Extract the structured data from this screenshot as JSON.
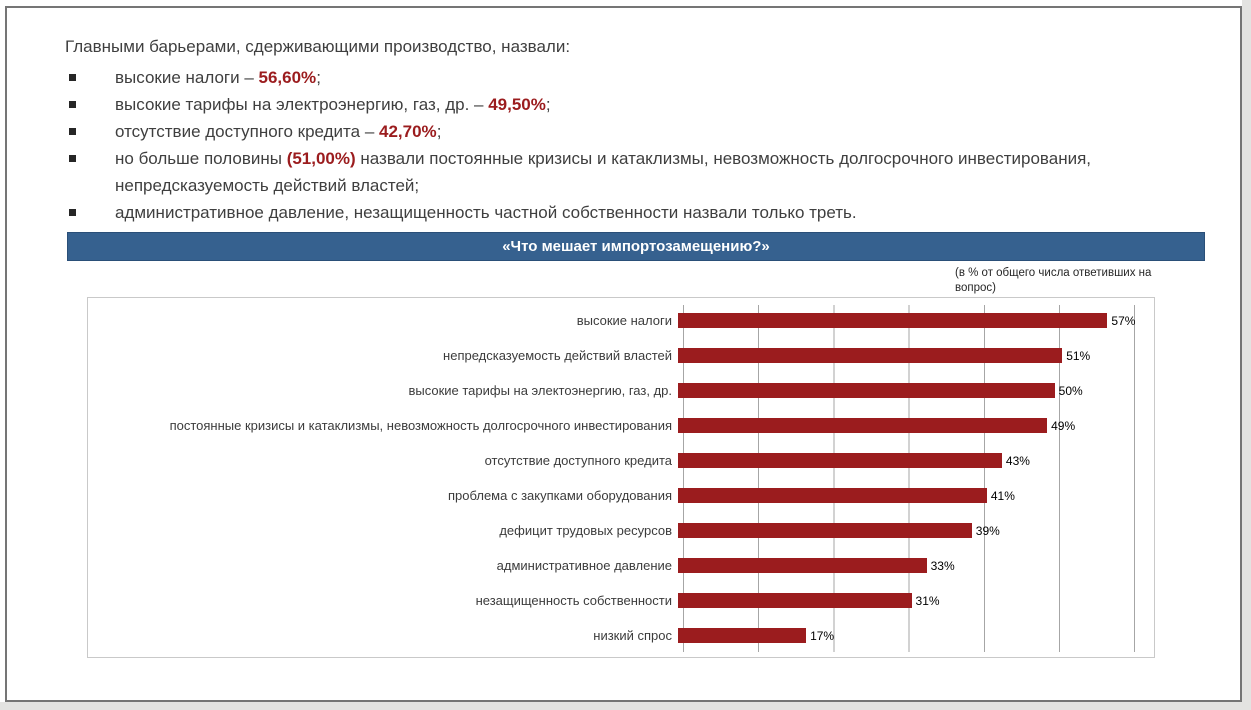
{
  "slide": {
    "intro": {
      "lead": "Главными барьерами, сдерживающими производство, назвали:",
      "bullets": [
        {
          "text_before": "высокие налоги – ",
          "highlight": "56,60%",
          "text_after": ";"
        },
        {
          "text_before": "высокие тарифы на электроэнергию, газ, др. – ",
          "highlight": "49,50%",
          "text_after": ";"
        },
        {
          "text_before": "отсутствие доступного кредита – ",
          "highlight": "42,70%",
          "text_after": ";"
        },
        {
          "text_before": "но больше половины ",
          "highlight": "(51,00%)",
          "text_after": " назвали постоянные кризисы и катаклизмы, невозможность долгосрочного инвестирования, непредсказуемость действий властей;"
        },
        {
          "text_before": "административное давление, незащищенность частной собственности назвали только треть.",
          "highlight": "",
          "text_after": ""
        }
      ]
    },
    "chart_header": "«Что мешает импортозамещению?»",
    "chart_note": "(в % от  общего числа ответивших на вопрос)"
  },
  "chart_data": {
    "type": "bar",
    "orientation": "horizontal",
    "title": "«Что мешает импортозамещению?»",
    "subtitle": "(в % от общего числа ответивших на вопрос)",
    "categories": [
      "высокие налоги",
      "непредсказуемость действий властей",
      "высокие тарифы на электоэнергию, газ, др.",
      "постоянные кризисы и катаклизмы, невозможность долгосрочного инвестирования",
      "отсутствие доступного кредита",
      "проблема с закупками оборудования",
      "дефицит трудовых ресурсов",
      "административное давление",
      "незащищенность собственности",
      "низкий спрос"
    ],
    "values": [
      57,
      51,
      50,
      49,
      43,
      41,
      39,
      33,
      31,
      17
    ],
    "value_labels": [
      "57%",
      "51%",
      "50%",
      "49%",
      "43%",
      "41%",
      "39%",
      "33%",
      "31%",
      "17%"
    ],
    "xlabel": "",
    "ylabel": "",
    "xlim": [
      0,
      60
    ],
    "gridline_step": 10,
    "grid": true,
    "legend": false
  },
  "colors": {
    "bar_red": "#9b1c1e",
    "highlight_red": "#9b1c1e",
    "header_blue": "#36618f",
    "body_text": "#3f3f3f",
    "gridline": "#a6a6a6"
  }
}
